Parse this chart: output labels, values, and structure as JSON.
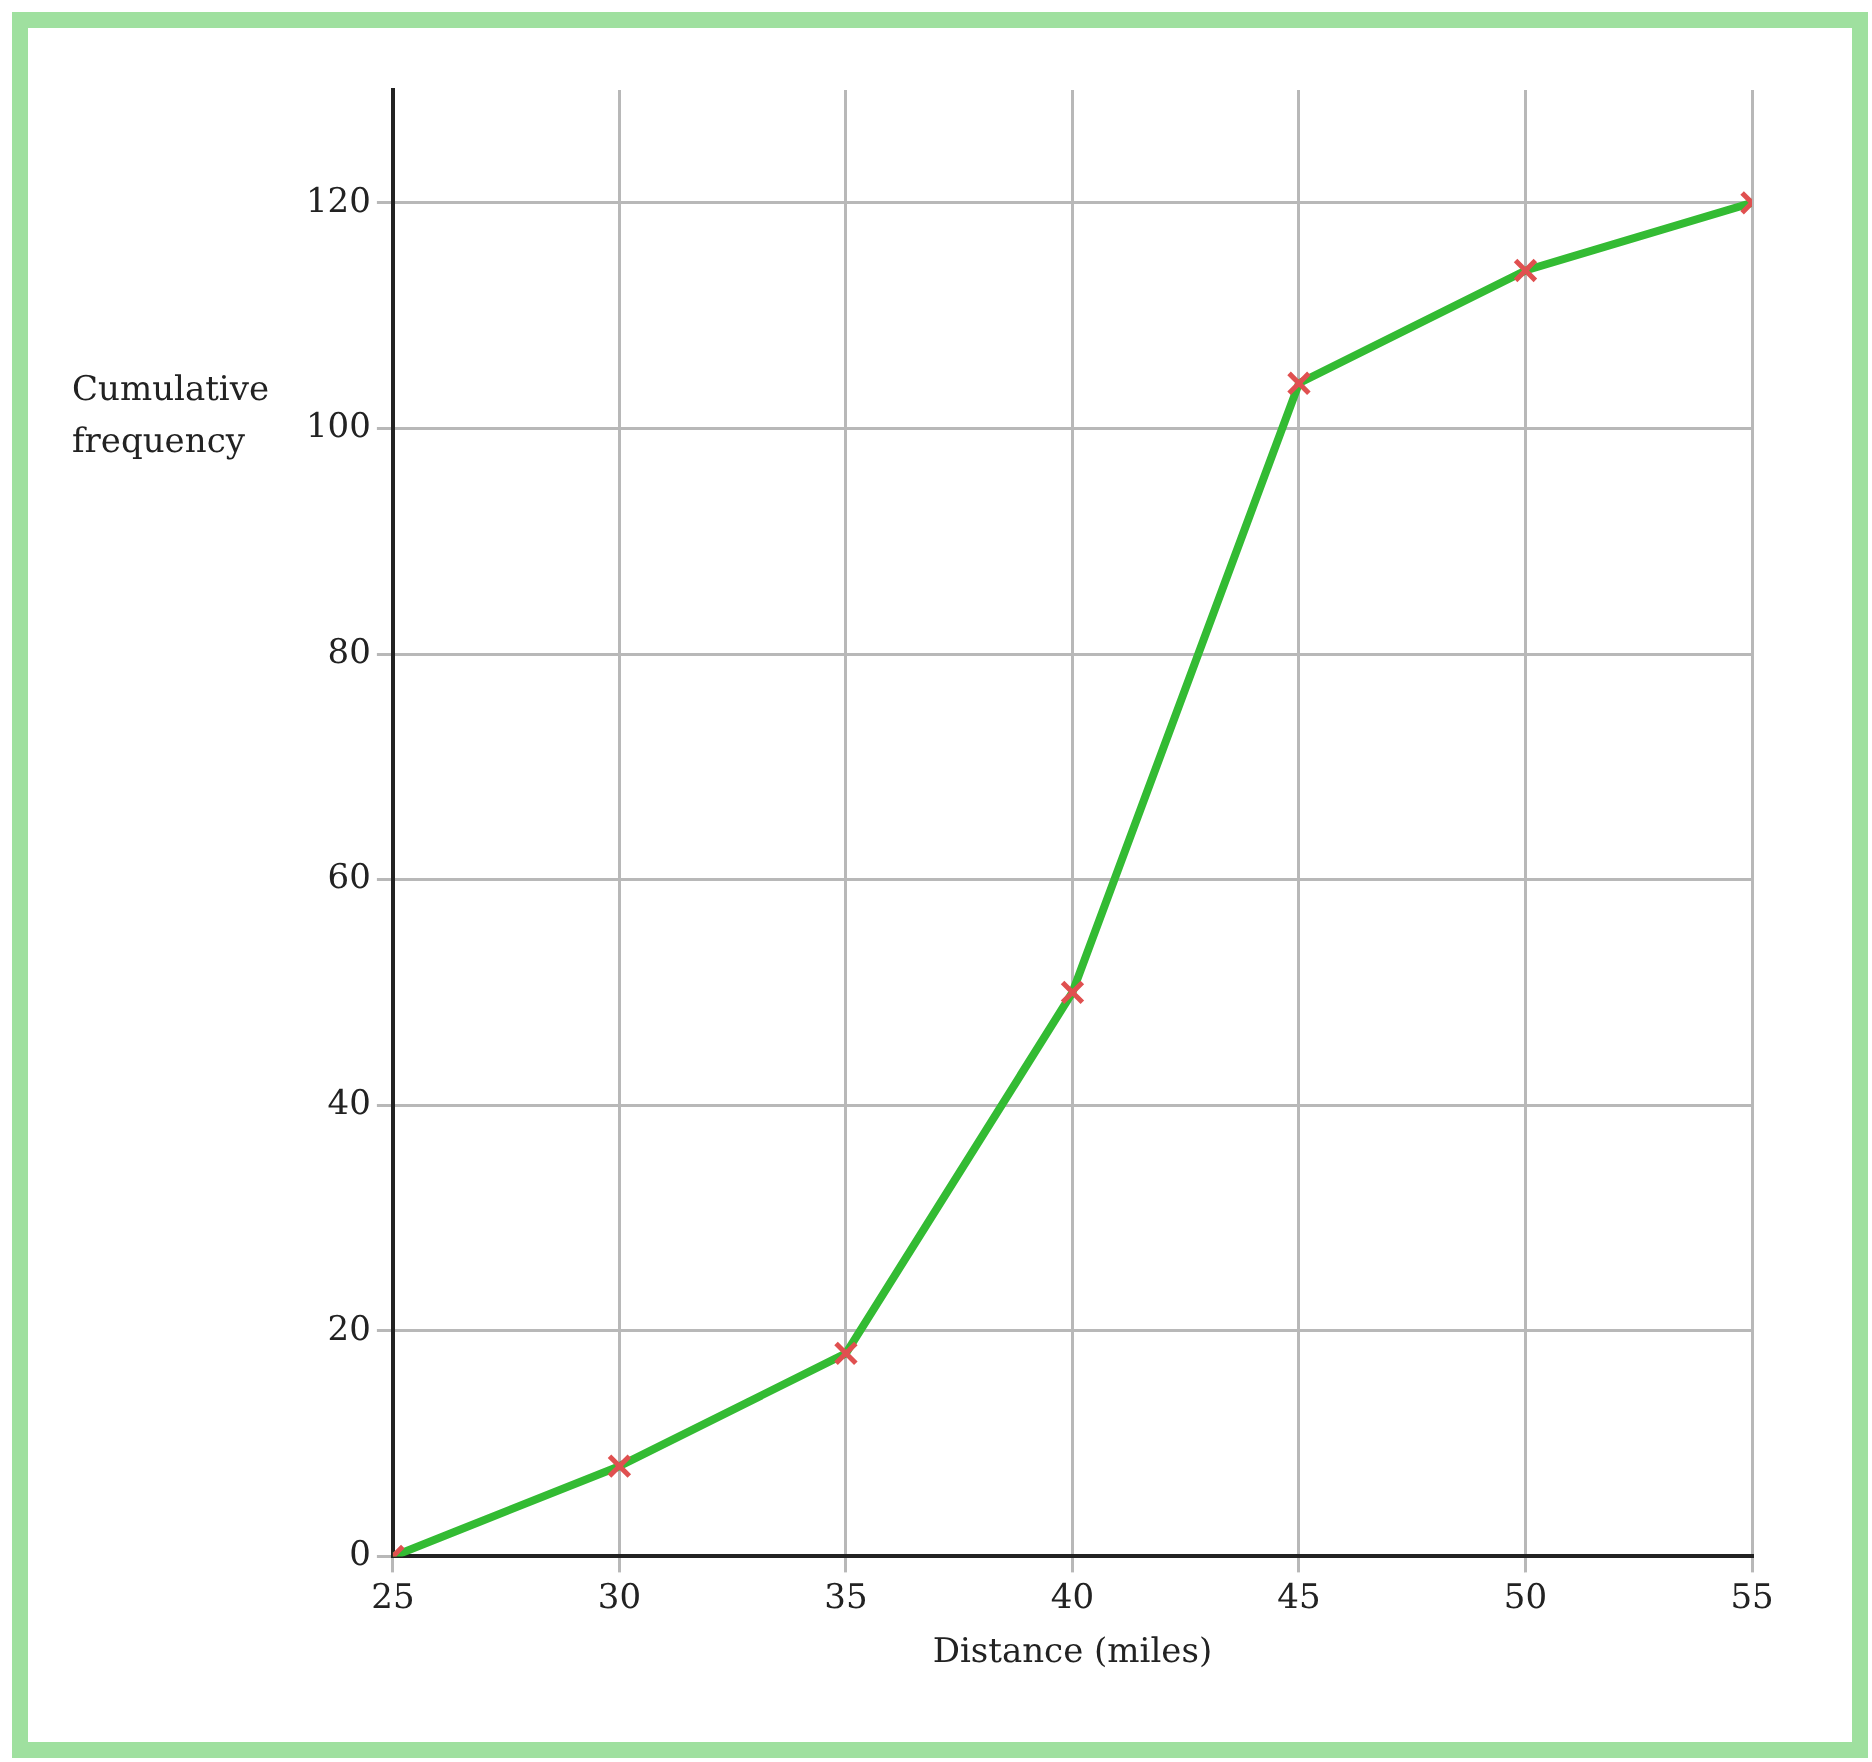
{
  "chart_data": {
    "type": "line",
    "xlabel": "Distance (miles)",
    "ylabel": "Cumulative frequency",
    "x": [
      25,
      30,
      35,
      40,
      45,
      50,
      55
    ],
    "series": [
      {
        "color": "#33bb33",
        "values": [
          0,
          8,
          18,
          50,
          104,
          114,
          120
        ]
      }
    ],
    "xlim": [
      25,
      55
    ],
    "xticks": [
      25,
      30,
      35,
      40,
      45,
      50,
      55
    ],
    "ylim": [
      0,
      130
    ],
    "yticks": [
      0,
      20,
      40,
      60,
      80,
      100,
      120
    ],
    "grid": true,
    "legend": false,
    "marker": "cross",
    "line_style": "solid"
  }
}
